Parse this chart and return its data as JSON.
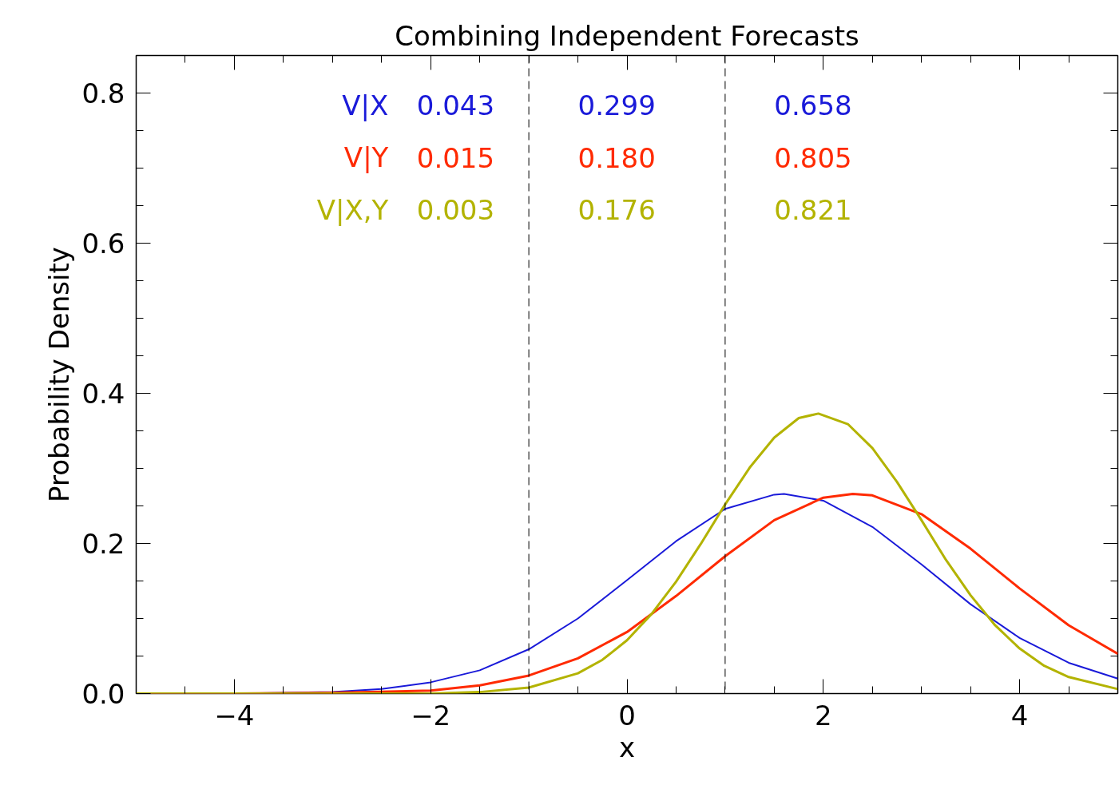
{
  "chart_data": {
    "type": "line",
    "title": "Combining Independent Forecasts",
    "xlabel": "x",
    "ylabel": "Probability Density",
    "xlim": [
      -5,
      5
    ],
    "ylim": [
      0,
      0.85
    ],
    "xticks": [
      {
        "value": -4,
        "label": "−4"
      },
      {
        "value": -2,
        "label": "−2"
      },
      0,
      2,
      4
    ],
    "yticks": [
      {
        "value": 0,
        "label": "0.0"
      },
      {
        "value": 0.2,
        "label": "0.2"
      },
      {
        "value": 0.4,
        "label": "0.4"
      },
      {
        "value": 0.6,
        "label": "0.6"
      },
      {
        "value": 0.8,
        "label": "0.8"
      }
    ],
    "series": [
      {
        "color": "#1a1ad9",
        "x": [
          -5,
          -4,
          -3,
          -2.5,
          -2,
          -1.5,
          -1,
          -0.5,
          0,
          0.5,
          1,
          1.5,
          1.6,
          2,
          2.5,
          3,
          3.5,
          4,
          4.5,
          5
        ],
        "values": [
          0.0,
          0.0,
          0.002,
          0.006,
          0.015,
          0.031,
          0.059,
          0.1,
          0.151,
          0.203,
          0.246,
          0.265,
          0.266,
          0.257,
          0.222,
          0.172,
          0.119,
          0.074,
          0.041,
          0.02
        ]
      },
      {
        "color": "#ff2a00",
        "x": [
          -5,
          -4,
          -3,
          -2,
          -1.5,
          -1,
          -0.5,
          0,
          0.5,
          1,
          1.5,
          2,
          2.3,
          2.5,
          3,
          3.5,
          4,
          4.5,
          5
        ],
        "values": [
          0.0,
          0.0,
          0.001,
          0.004,
          0.011,
          0.024,
          0.047,
          0.082,
          0.13,
          0.183,
          0.231,
          0.261,
          0.266,
          0.264,
          0.239,
          0.193,
          0.14,
          0.091,
          0.053
        ]
      },
      {
        "color": "#b3b300",
        "x": [
          -5,
          -3,
          -2,
          -1.5,
          -1,
          -0.5,
          -0.25,
          0,
          0.25,
          0.5,
          0.75,
          1,
          1.25,
          1.5,
          1.75,
          1.95,
          2.25,
          2.5,
          2.75,
          3,
          3.25,
          3.5,
          3.75,
          4,
          4.25,
          4.5,
          5
        ],
        "values": [
          0.0,
          0.0,
          0.0,
          0.002,
          0.008,
          0.027,
          0.045,
          0.071,
          0.106,
          0.149,
          0.199,
          0.252,
          0.301,
          0.341,
          0.367,
          0.373,
          0.359,
          0.327,
          0.282,
          0.231,
          0.178,
          0.131,
          0.091,
          0.06,
          0.037,
          0.022,
          0.006
        ]
      }
    ],
    "ref_lines": [
      {
        "axis": "x",
        "value": -1,
        "color": "#000000",
        "line_style": "dashed"
      },
      {
        "axis": "x",
        "value": 1,
        "color": "#000000",
        "line_style": "dashed"
      }
    ],
    "annotations": [
      "V|X",
      "0.043",
      "0.299",
      "0.658",
      "V|Y",
      "0.015",
      "0.180",
      "0.805",
      "V|X,Y",
      "0.003",
      "0.176",
      "0.821"
    ],
    "grid": false
  }
}
